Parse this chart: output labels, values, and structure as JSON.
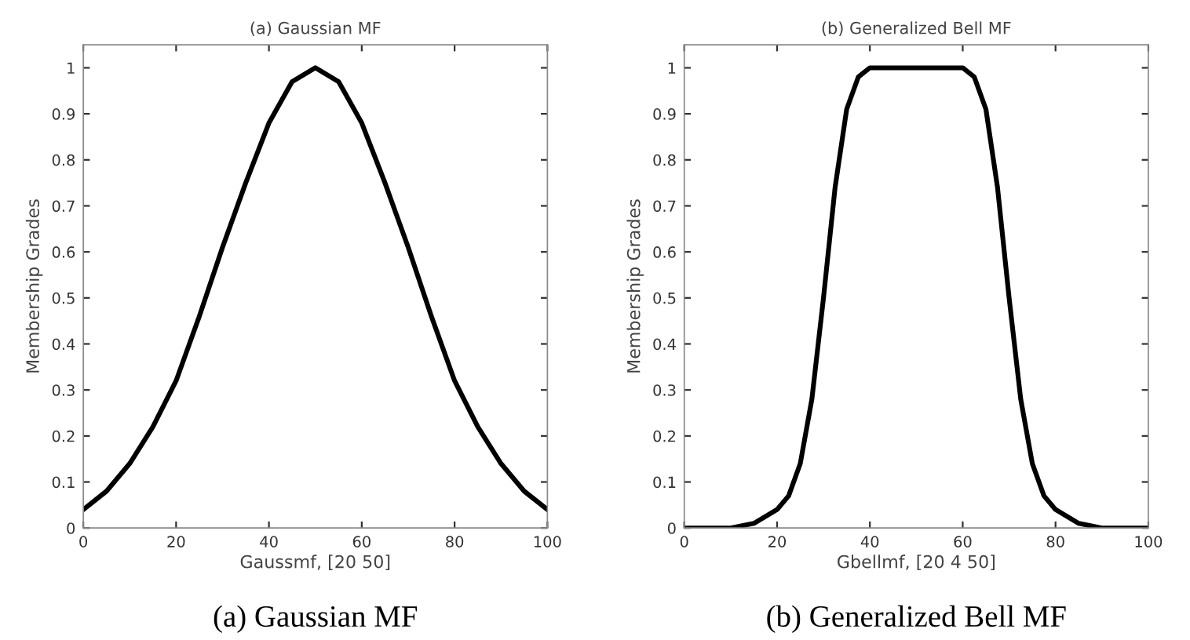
{
  "chart_data": [
    {
      "type": "line",
      "title": "(a) Gaussian MF",
      "xlabel": "Gaussmf, [20 50]",
      "ylabel": "Membership Grades",
      "annotations": [
        "(a) Gaussian MF"
      ],
      "x": [
        0,
        5,
        10,
        15,
        20,
        25,
        30,
        35,
        40,
        45,
        50,
        55,
        60,
        65,
        70,
        75,
        80,
        85,
        90,
        95,
        100
      ],
      "series": [
        {
          "color": "#000000",
          "values": [
            0.04,
            0.08,
            0.14,
            0.22,
            0.32,
            0.46,
            0.61,
            0.75,
            0.88,
            0.97,
            1,
            0.97,
            0.88,
            0.75,
            0.61,
            0.46,
            0.32,
            0.22,
            0.14,
            0.08,
            0.04
          ]
        }
      ],
      "xlim": [
        0,
        100
      ],
      "ylim": [
        0,
        1.05
      ],
      "xticks": [
        0,
        20,
        40,
        60,
        80,
        100
      ],
      "yticks": [
        0,
        0.1,
        0.2,
        0.3,
        0.4,
        0.5,
        0.6,
        0.7,
        0.8,
        0.9,
        1
      ],
      "grid": false,
      "legend": false
    },
    {
      "type": "line",
      "title": "(b) Generalized Bell MF",
      "xlabel": "Gbellmf, [20 4 50]",
      "ylabel": "Membership Grades",
      "annotations": [
        "(b) Generalized Bell MF"
      ],
      "x": [
        0,
        5,
        10,
        15,
        20,
        22.5,
        25,
        27.5,
        30,
        32.5,
        35,
        37.5,
        40,
        45,
        50,
        55,
        60,
        62.5,
        65,
        67.5,
        70,
        72.5,
        75,
        77.5,
        80,
        85,
        90,
        95,
        100
      ],
      "series": [
        {
          "color": "#000000",
          "values": [
            0,
            0,
            0,
            0.01,
            0.04,
            0.07,
            0.14,
            0.28,
            0.5,
            0.74,
            0.91,
            0.98,
            1,
            1,
            1,
            1,
            1,
            0.98,
            0.91,
            0.74,
            0.5,
            0.28,
            0.14,
            0.07,
            0.04,
            0.01,
            0,
            0,
            0
          ]
        }
      ],
      "xlim": [
        0,
        100
      ],
      "ylim": [
        0,
        1.05
      ],
      "xticks": [
        0,
        20,
        40,
        60,
        80,
        100
      ],
      "yticks": [
        0,
        0.1,
        0.2,
        0.3,
        0.4,
        0.5,
        0.6,
        0.7,
        0.8,
        0.9,
        1
      ],
      "grid": false,
      "legend": false
    }
  ]
}
